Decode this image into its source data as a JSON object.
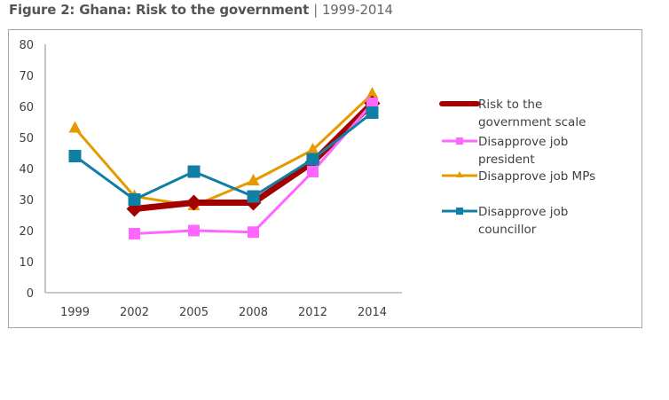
{
  "figure": {
    "title_bold": "Figure 2: Ghana: Risk to the government",
    "separator": "|",
    "title_range": "1999-2014"
  },
  "chart_data": {
    "type": "line",
    "title": "Figure 2: Ghana: Risk to the government | 1999-2014",
    "xlabel": "",
    "ylabel": "",
    "categories": [
      "1999",
      "2002",
      "2005",
      "2008",
      "2012",
      "2014"
    ],
    "ylim": [
      0,
      80
    ],
    "yticks": [
      0,
      10,
      20,
      30,
      40,
      50,
      60,
      70,
      80
    ],
    "grid": false,
    "legend_position": "right",
    "series": [
      {
        "name": "Risk to the government scale",
        "legend_lines": [
          "Risk to the",
          "government scale"
        ],
        "color": "#a50000",
        "marker": "diamond",
        "values": [
          null,
          27,
          29,
          29,
          42,
          61
        ]
      },
      {
        "name": "Disapprove job president",
        "legend_lines": [
          "Disapprove job",
          "president"
        ],
        "color": "#ff66ff",
        "marker": "square",
        "values": [
          null,
          19,
          20,
          19.5,
          39,
          61
        ]
      },
      {
        "name": "Disapprove job MPs",
        "legend_lines": [
          "Disapprove job MPs"
        ],
        "color": "#e69a00",
        "marker": "triangle",
        "values": [
          53,
          31,
          28,
          36,
          46,
          64
        ]
      },
      {
        "name": "Disapprove job councillor",
        "legend_lines": [
          "Disapprove job",
          "councillor"
        ],
        "color": "#0f7fa3",
        "marker": "square",
        "values": [
          44,
          30,
          39,
          31,
          43,
          58
        ]
      }
    ]
  }
}
